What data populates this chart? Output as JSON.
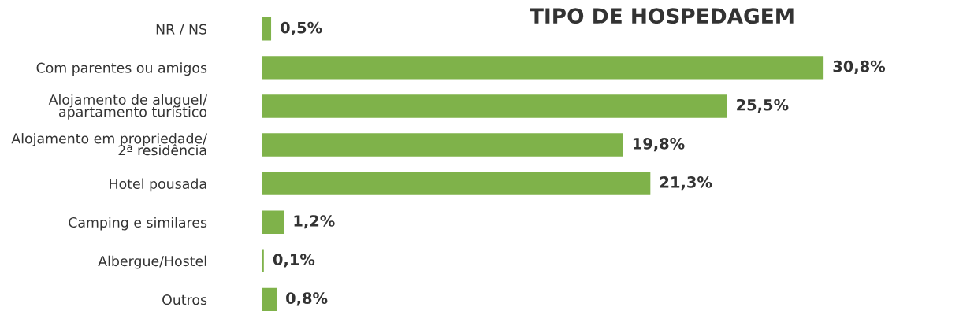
{
  "chart_data": {
    "type": "bar",
    "orientation": "horizontal",
    "title": "TIPO DE HOSPEDAGEM",
    "categories": [
      "NR / NS",
      "Com parentes ou amigos",
      "Alojamento de aluguel/\napartamento turístico",
      "Alojamento em propriedade/\n2ª residência",
      "Hotel pousada",
      "Camping e similares",
      "Albergue/Hostel",
      "Outros"
    ],
    "values": [
      0.5,
      30.8,
      25.5,
      19.8,
      21.3,
      1.2,
      0.1,
      0.8
    ],
    "value_labels": [
      "0,5%",
      "30,8%",
      "25,5%",
      "19,8%",
      "21,3%",
      "1,2%",
      "0,1%",
      "0,8%"
    ],
    "color": "#7fb24a",
    "grid": false,
    "legend": false
  }
}
